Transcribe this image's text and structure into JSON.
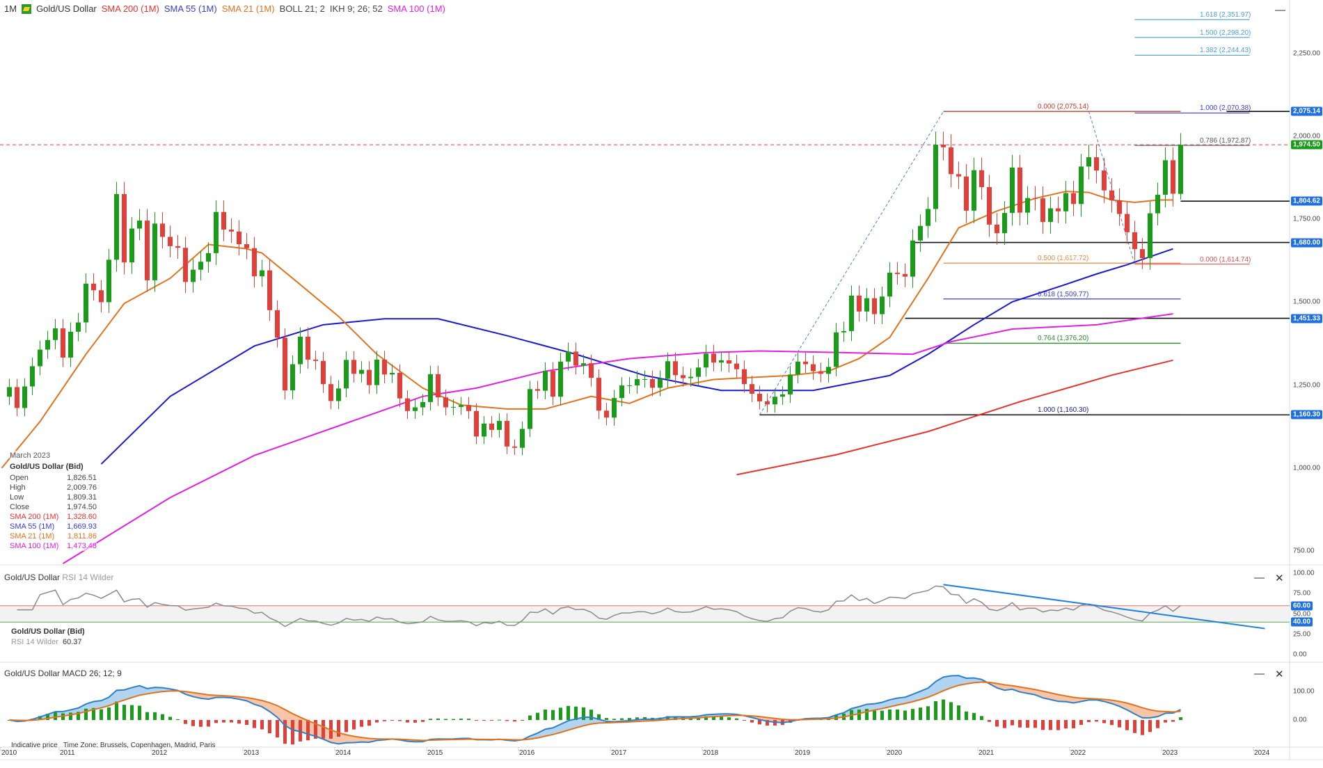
{
  "header": {
    "timeframe": "1M",
    "instrument": "Gold/US Dollar",
    "indicators": [
      {
        "label": "SMA 200 (1M)",
        "color": "#e8312f"
      },
      {
        "label": "SMA 55 (1M)",
        "color": "#3a3ad6"
      },
      {
        "label": "SMA 21 (1M)",
        "color": "#e0731f"
      },
      {
        "label": "BOLL 21; 2",
        "color": "#444444"
      },
      {
        "label": "IKH 9; 26; 52",
        "color": "#444444"
      },
      {
        "label": "SMA 100 (1M)",
        "color": "#e01fe0"
      }
    ]
  },
  "infobox": {
    "date": "March 2023",
    "title": "Gold/US Dollar (Bid)",
    "rows": [
      {
        "label": "Open",
        "value": "1,826.51",
        "color": "#444"
      },
      {
        "label": "High",
        "value": "2,009.76",
        "color": "#444"
      },
      {
        "label": "Low",
        "value": "1,809.31",
        "color": "#444"
      },
      {
        "label": "Close",
        "value": "1,974.50",
        "color": "#444"
      },
      {
        "label": "SMA 200 (1M)",
        "value": "1,328.60",
        "color": "#e8312f"
      },
      {
        "label": "SMA 55 (1M)",
        "value": "1,669.93",
        "color": "#3a3ad6"
      },
      {
        "label": "SMA 21 (1M)",
        "value": "1,811.86",
        "color": "#e0731f"
      },
      {
        "label": "SMA 100 (1M)",
        "value": "1,473.48",
        "color": "#e01fe0"
      }
    ]
  },
  "rsi_pane": {
    "instrument": "Gold/US Dollar",
    "indicator": "RSI 14 Wilder",
    "box_title": "Gold/US Dollar (Bid)",
    "box_label": "RSI 14 Wilder",
    "box_value": "60.37"
  },
  "macd_pane": {
    "instrument": "Gold/US Dollar",
    "indicator": "MACD 26; 12; 9"
  },
  "footer": {
    "note": "Indicative price",
    "timezone": "Time Zone: Brussels, Copenhagen, Madrid, Paris"
  },
  "controls": {
    "minimize": "—",
    "close": "✕"
  },
  "chart_data": {
    "type": "candlestick",
    "interval": "monthly",
    "start": "2010-06",
    "first_open": 1215,
    "closes": [
      1244,
      1181,
      1246,
      1307,
      1357,
      1386,
      1421,
      1333,
      1411,
      1439,
      1556,
      1536,
      1500,
      1628,
      1826,
      1620,
      1722,
      1746,
      1566,
      1737,
      1697,
      1669,
      1664,
      1561,
      1598,
      1622,
      1648,
      1772,
      1719,
      1713,
      1675,
      1663,
      1578,
      1596,
      1476,
      1393,
      1234,
      1313,
      1396,
      1327,
      1323,
      1253,
      1202,
      1240,
      1326,
      1284,
      1296,
      1250,
      1327,
      1282,
      1287,
      1210,
      1172,
      1183,
      1199,
      1283,
      1213,
      1183,
      1184,
      1190,
      1172,
      1095,
      1134,
      1115,
      1142,
      1065,
      1061,
      1118,
      1238,
      1233,
      1293,
      1215,
      1321,
      1351,
      1309,
      1316,
      1272,
      1173,
      1152,
      1211,
      1249,
      1249,
      1268,
      1268,
      1242,
      1269,
      1322,
      1280,
      1271,
      1275,
      1303,
      1345,
      1318,
      1325,
      1315,
      1298,
      1253,
      1224,
      1201,
      1192,
      1215,
      1222,
      1282,
      1321,
      1313,
      1292,
      1284,
      1305,
      1409,
      1413,
      1520,
      1472,
      1512,
      1464,
      1517,
      1589,
      1585,
      1577,
      1686,
      1730,
      1781,
      1975,
      1967,
      1886,
      1879,
      1776,
      1898,
      1847,
      1734,
      1708,
      1769,
      1906,
      1770,
      1814,
      1813,
      1742,
      1783,
      1774,
      1829,
      1796,
      1909,
      1937,
      1897,
      1837,
      1807,
      1766,
      1711,
      1660,
      1633,
      1768,
      1824,
      1928,
      1827,
      1974.5
    ],
    "last_candle": {
      "open": 1826.51,
      "high": 2009.76,
      "low": 1809.31,
      "close": 1974.5
    },
    "price_axis": {
      "ticks": [
        "2,250.00",
        "2,000.00",
        "1,750.00",
        "1,500.00",
        "1,250.00",
        "1,000.00",
        "750.00"
      ],
      "values": [
        2250,
        2000,
        1750,
        1500,
        1250,
        1000,
        750
      ]
    },
    "time_axis": [
      "2010",
      "2011",
      "2012",
      "2013",
      "2014",
      "2015",
      "2016",
      "2017",
      "2018",
      "2019",
      "2020",
      "2021",
      "2022",
      "2023",
      "2024"
    ],
    "sma": [
      {
        "name": "SMA 200 (1M)",
        "color": "#e8312f",
        "points": [
          [
            "2018-05",
            980
          ],
          [
            "2019-06",
            1040
          ],
          [
            "2020-06",
            1110
          ],
          [
            "2021-06",
            1200
          ],
          [
            "2022-06",
            1280
          ],
          [
            "2023-02",
            1325
          ]
        ]
      },
      {
        "name": "SMA 55 (1M)",
        "color": "#1a1acc",
        "points": [
          [
            "2011-06",
            1012
          ],
          [
            "2012-03",
            1216
          ],
          [
            "2013-02",
            1368
          ],
          [
            "2013-11",
            1432
          ],
          [
            "2014-07",
            1450
          ],
          [
            "2015-02",
            1450
          ],
          [
            "2015-11",
            1399
          ],
          [
            "2016-08",
            1343
          ],
          [
            "2017-05",
            1279
          ],
          [
            "2018-03",
            1234
          ],
          [
            "2019-03",
            1234
          ],
          [
            "2020-01",
            1279
          ],
          [
            "2020-06",
            1343
          ],
          [
            "2020-12",
            1432
          ],
          [
            "2021-05",
            1501
          ],
          [
            "2021-11",
            1546
          ],
          [
            "2022-04",
            1585
          ],
          [
            "2022-08",
            1613
          ],
          [
            "2023-02",
            1661
          ]
        ]
      },
      {
        "name": "SMA 21 (1M)",
        "color": "#e0731f",
        "points": [
          [
            "2010-05",
            1000
          ],
          [
            "2010-10",
            1140
          ],
          [
            "2011-04",
            1343
          ],
          [
            "2011-09",
            1496
          ],
          [
            "2012-03",
            1572
          ],
          [
            "2012-08",
            1674
          ],
          [
            "2013-01",
            1661
          ],
          [
            "2013-03",
            1648
          ],
          [
            "2013-07",
            1572
          ],
          [
            "2014-01",
            1457
          ],
          [
            "2014-06",
            1343
          ],
          [
            "2014-12",
            1241
          ],
          [
            "2015-05",
            1190
          ],
          [
            "2015-11",
            1178
          ],
          [
            "2016-04",
            1178
          ],
          [
            "2016-10",
            1216
          ],
          [
            "2017-03",
            1195
          ],
          [
            "2017-08",
            1241
          ],
          [
            "2018-02",
            1267
          ],
          [
            "2018-06",
            1272
          ],
          [
            "2018-12",
            1279
          ],
          [
            "2019-05",
            1292
          ],
          [
            "2019-09",
            1330
          ],
          [
            "2020-01",
            1394
          ],
          [
            "2020-06",
            1572
          ],
          [
            "2020-10",
            1724
          ],
          [
            "2021-03",
            1775
          ],
          [
            "2021-08",
            1813
          ],
          [
            "2021-12",
            1834
          ],
          [
            "2022-03",
            1831
          ],
          [
            "2022-06",
            1808
          ],
          [
            "2022-09",
            1801
          ],
          [
            "2022-12",
            1808
          ],
          [
            "2023-02",
            1808
          ]
        ]
      },
      {
        "name": "SMA 100 (1M)",
        "color": "#e01fe0",
        "points": [
          [
            "2011-01",
            712
          ],
          [
            "2012-03",
            911
          ],
          [
            "2013-02",
            1038
          ],
          [
            "2014-01",
            1127
          ],
          [
            "2014-12",
            1216
          ],
          [
            "2015-07",
            1241
          ],
          [
            "2016-04",
            1292
          ],
          [
            "2017-03",
            1330
          ],
          [
            "2018-01",
            1348
          ],
          [
            "2018-08",
            1353
          ],
          [
            "2019-07",
            1348
          ],
          [
            "2020-04",
            1343
          ],
          [
            "2020-09",
            1381
          ],
          [
            "2021-05",
            1419
          ],
          [
            "2022-04",
            1432
          ],
          [
            "2023-02",
            1465
          ]
        ]
      }
    ],
    "current_price": {
      "value": 1974.5,
      "label": "1,974.50",
      "color": "#1a9c1a"
    },
    "horizontal_levels": [
      {
        "label": "2,075.14",
        "value": 2075.14,
        "from": "2023-09"
      },
      {
        "label": "1,804.62",
        "value": 1804.62,
        "from": "2023-03"
      },
      {
        "label": "1,680.00",
        "value": 1680.0,
        "from": "2020-04"
      },
      {
        "label": "1,451.33",
        "value": 1451.33,
        "from": "2020-03"
      },
      {
        "label": "1,160.30",
        "value": 1160.3,
        "from": "2018-08"
      }
    ],
    "fib_retracement": {
      "from": "2020-08",
      "to": "2023-03",
      "levels": [
        {
          "label": "0.000 (2,075.14)",
          "value": 2075.14,
          "color": "#c0392b"
        },
        {
          "label": "0.500 (1,617.72)",
          "value": 1617.72,
          "color": "#e8894a"
        },
        {
          "label": "0.618 (1,509.77)",
          "value": 1509.77,
          "color": "#3a3ad6"
        },
        {
          "label": "0.764 (1,376.20)",
          "value": 1376.2,
          "color": "#2a8a2a"
        },
        {
          "label": "1.000 (1,160.30)",
          "value": 1160.3,
          "color": "#1a1a8a"
        }
      ]
    },
    "fib_extension": {
      "from": "2022-09",
      "to": "2023-12",
      "levels": [
        {
          "label": "0.000 (1,614.74)",
          "value": 1614.74,
          "color": "#d9534f"
        },
        {
          "label": "0.786 (1,972.87)",
          "value": 1972.87,
          "color": "#555555"
        },
        {
          "label": "1.000 (2,070.38)",
          "value": 2070.38,
          "color": "#3a3ad6"
        },
        {
          "label": "1.382 (2,244.43)",
          "value": 2244.43,
          "color": "#4a9fd6"
        },
        {
          "label": "1.500 (2,298.20)",
          "value": 2298.2,
          "color": "#4a9fd6"
        },
        {
          "label": "1.618 (2,351.97)",
          "value": 2351.97,
          "color": "#4a9fd6"
        }
      ]
    },
    "trend_lines": [
      [
        [
          "2018-08",
          1160.3
        ],
        [
          "2020-08",
          2075.14
        ]
      ],
      [
        [
          "2022-03",
          2075.14
        ],
        [
          "2022-09",
          1614.74
        ]
      ]
    ],
    "rsi": {
      "period": 14,
      "upper": 60,
      "lower": 40,
      "ticks": [
        "100.00",
        "75.00",
        "50.00",
        "25.00",
        "0.00"
      ],
      "upper_label": "60.00",
      "lower_label": "40.00",
      "trendline": [
        [
          "2020-08",
          86
        ],
        [
          "2024-02",
          32
        ]
      ]
    },
    "macd": {
      "fast": 12,
      "slow": 26,
      "signal": 9,
      "ticks": [
        "100.00",
        "0.00"
      ]
    },
    "colors": {
      "up": "#1a9c1a",
      "down": "#e0403a",
      "badge": "#1f6fe0"
    }
  }
}
